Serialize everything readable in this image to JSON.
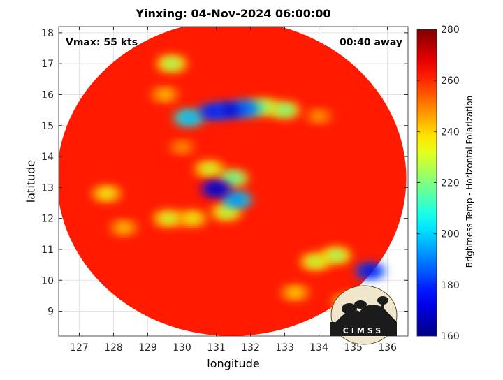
{
  "chart_data": {
    "type": "heatmap",
    "title": "Yinxing: 04-Nov-2024 06:00:00",
    "annotations": {
      "vmax": "Vmax: 55 kts",
      "away": "00:40 away"
    },
    "xlabel": "longitude",
    "ylabel": "latitude",
    "xlim": [
      126.4,
      136.6
    ],
    "ylim": [
      8.2,
      18.2
    ],
    "xticks": [
      127,
      128,
      129,
      130,
      131,
      132,
      133,
      134,
      135,
      136
    ],
    "yticks": [
      9,
      10,
      11,
      12,
      13,
      14,
      15,
      16,
      17,
      18
    ],
    "grid": true,
    "colorbar": {
      "label": "Brightness Temp - Horizontal Polarization",
      "range": [
        160,
        280
      ],
      "ticks": [
        160,
        180,
        200,
        220,
        240,
        260,
        280
      ]
    },
    "swath": {
      "center_lon": 131.45,
      "center_lat": 13.3,
      "radius_deg": 5.1
    },
    "background_tb": 262,
    "features": [
      {
        "lon": 131.0,
        "lat": 12.95,
        "tb": 165
      },
      {
        "lon": 131.6,
        "lat": 12.6,
        "tb": 190
      },
      {
        "lon": 131.3,
        "lat": 12.2,
        "tb": 225
      },
      {
        "lon": 131.5,
        "lat": 13.3,
        "tb": 215
      },
      {
        "lon": 130.8,
        "lat": 13.6,
        "tb": 228
      },
      {
        "lon": 130.9,
        "lat": 15.45,
        "tb": 175
      },
      {
        "lon": 131.4,
        "lat": 15.5,
        "tb": 170
      },
      {
        "lon": 130.2,
        "lat": 15.25,
        "tb": 195
      },
      {
        "lon": 131.9,
        "lat": 15.55,
        "tb": 185
      },
      {
        "lon": 132.4,
        "lat": 15.6,
        "tb": 220
      },
      {
        "lon": 133.0,
        "lat": 15.5,
        "tb": 218
      },
      {
        "lon": 129.6,
        "lat": 12.0,
        "tb": 228
      },
      {
        "lon": 130.3,
        "lat": 12.0,
        "tb": 232
      },
      {
        "lon": 128.3,
        "lat": 11.7,
        "tb": 240
      },
      {
        "lon": 127.8,
        "lat": 12.8,
        "tb": 232
      },
      {
        "lon": 129.7,
        "lat": 17.0,
        "tb": 222
      },
      {
        "lon": 129.5,
        "lat": 16.0,
        "tb": 240
      },
      {
        "lon": 135.5,
        "lat": 10.3,
        "tb": 172
      },
      {
        "lon": 134.5,
        "lat": 10.8,
        "tb": 222
      },
      {
        "lon": 133.9,
        "lat": 10.6,
        "tb": 225
      },
      {
        "lon": 133.3,
        "lat": 9.6,
        "tb": 238
      },
      {
        "lon": 134.8,
        "lat": 9.3,
        "tb": 236
      },
      {
        "lon": 130.0,
        "lat": 14.3,
        "tb": 245
      },
      {
        "lon": 134.0,
        "lat": 15.3,
        "tb": 244
      }
    ],
    "logo_text": "CIMSS"
  }
}
